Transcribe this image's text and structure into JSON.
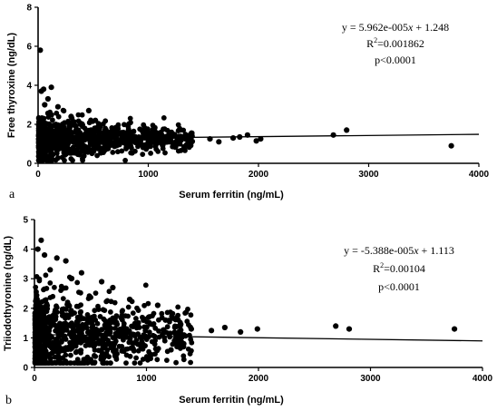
{
  "chart_data": [
    {
      "type": "scatter",
      "panel_label": "a",
      "title": "",
      "xlabel": "Serum ferritin (ng/mL)",
      "ylabel": "Free thyroxine (ng/dL)",
      "xlim": [
        0,
        4000
      ],
      "ylim": [
        0,
        8
      ],
      "xticks": [
        0,
        1000,
        2000,
        3000,
        4000
      ],
      "yticks": [
        0,
        2,
        4,
        6,
        8
      ],
      "grid": false,
      "regression": {
        "slope": 5.962e-05,
        "intercept": 1.248,
        "equation": {
          "prefix": "y = 5.962e-005",
          "var": "x",
          "suffix": " + 1.248"
        },
        "r2": {
          "base": "R",
          "sup": "2",
          "value": "=0.001862"
        },
        "p_text": "p<0.0001"
      },
      "outliers": [
        [
          20,
          5.8
        ],
        [
          50,
          3.8
        ],
        [
          30,
          3.7
        ],
        [
          120,
          3.9
        ],
        [
          90,
          3.3
        ],
        [
          60,
          3.0
        ],
        [
          180,
          2.9
        ],
        [
          460,
          2.7
        ],
        [
          300,
          2.4
        ],
        [
          520,
          2.2
        ],
        [
          1200,
          1.45
        ],
        [
          1300,
          1.35
        ],
        [
          1380,
          1.3
        ],
        [
          1560,
          1.25
        ],
        [
          1640,
          1.1
        ],
        [
          1770,
          1.3
        ],
        [
          1830,
          1.35
        ],
        [
          1900,
          1.45
        ],
        [
          1980,
          1.15
        ],
        [
          2020,
          1.25
        ],
        [
          2680,
          1.45
        ],
        [
          2800,
          1.7
        ],
        [
          3750,
          0.9
        ]
      ],
      "bulk": {
        "x_max": 1400,
        "y_center": 1.25,
        "y_spread": 0.55,
        "count": 900
      }
    },
    {
      "type": "scatter",
      "panel_label": "b",
      "title": "",
      "xlabel": "Serum ferritin (ng/mL)",
      "ylabel": "Triiodothyronine (ng/dL)",
      "xlim": [
        0,
        4000
      ],
      "ylim": [
        0,
        5
      ],
      "xticks": [
        0,
        1000,
        2000,
        3000,
        4000
      ],
      "yticks": [
        0,
        1,
        2,
        3,
        4,
        5
      ],
      "grid": false,
      "regression": {
        "slope": -5.388e-05,
        "intercept": 1.113,
        "equation": {
          "prefix": "y = -5.388e-005",
          "var": "x",
          "suffix": " + 1.113"
        },
        "r2": {
          "base": "R",
          "sup": "2",
          "value": "=0.00104"
        },
        "p_text": "p<0.0001"
      },
      "outliers": [
        [
          60,
          4.3
        ],
        [
          30,
          4.0
        ],
        [
          90,
          3.8
        ],
        [
          200,
          3.7
        ],
        [
          280,
          3.6
        ],
        [
          140,
          3.3
        ],
        [
          420,
          3.2
        ],
        [
          330,
          3.0
        ],
        [
          600,
          2.9
        ],
        [
          700,
          2.7
        ],
        [
          850,
          2.3
        ],
        [
          1100,
          2.1
        ],
        [
          1020,
          1.7
        ],
        [
          1170,
          1.6
        ],
        [
          1300,
          1.4
        ],
        [
          1400,
          1.3
        ],
        [
          1580,
          1.25
        ],
        [
          1700,
          1.35
        ],
        [
          1840,
          1.2
        ],
        [
          1990,
          1.3
        ],
        [
          2690,
          1.4
        ],
        [
          2810,
          1.3
        ],
        [
          3750,
          1.3
        ],
        [
          1250,
          0.9
        ],
        [
          1330,
          0.7
        ]
      ],
      "bulk": {
        "x_max": 1400,
        "y_center": 1.1,
        "y_spread": 0.75,
        "count": 900
      }
    }
  ]
}
